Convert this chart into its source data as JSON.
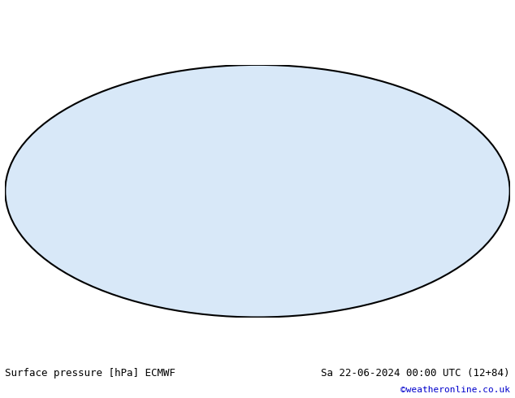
{
  "title_left": "Surface pressure [hPa] ECMWF",
  "title_right": "Sa 22-06-2024 00:00 UTC (12+84)",
  "copyright": "©weatheronline.co.uk",
  "background_color": "#ffffff",
  "map_background": "#e8e8e8",
  "land_color": "#c8e8c0",
  "ocean_color": "#d8e8f8",
  "contour_interval": 4,
  "pressure_min": 960,
  "pressure_max": 1040,
  "bold_contour": 1013,
  "contour_color_low": "#0000cc",
  "contour_color_high": "#cc0000",
  "contour_color_bold": "#000000",
  "label_fontsize": 7,
  "title_fontsize": 9,
  "copyright_color": "#0000cc",
  "figsize": [
    6.34,
    4.9
  ],
  "dpi": 100
}
